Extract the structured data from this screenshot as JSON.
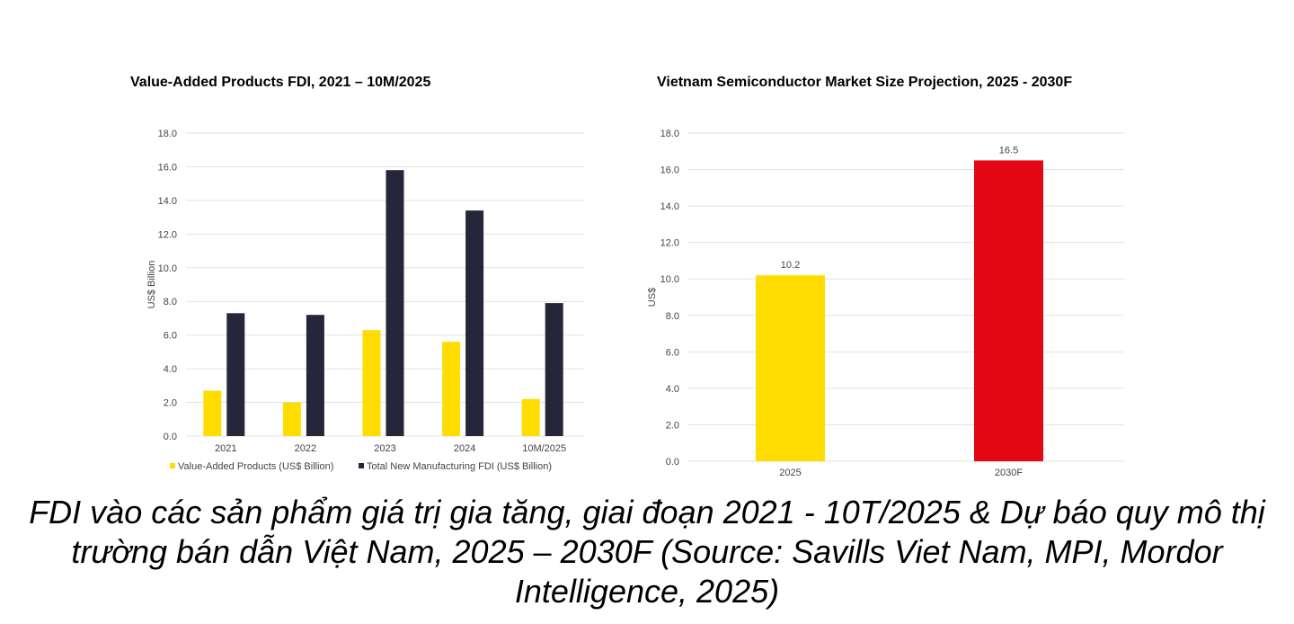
{
  "caption": {
    "line1": "FDI vào các sản phẩm giá trị gia tăng, giai đoạn 2021 - 10T/2025 & Dự báo quy mô thị",
    "line2": "trường bán dẫn Việt Nam, 2025 – 2030F (Source: Savills Viet Nam, MPI, Mordor",
    "line3": "Intelligence, 2025)"
  },
  "chart_data": [
    {
      "type": "bar",
      "title": "Value-Added Products FDI, 2021 – 10M/2025",
      "xlabel": "",
      "ylabel": "US$ Billion",
      "ylim": [
        0,
        18
      ],
      "yticks": [
        "0.0",
        "2.0",
        "4.0",
        "6.0",
        "8.0",
        "10.0",
        "12.0",
        "14.0",
        "16.0",
        "18.0"
      ],
      "grid": true,
      "legend": "bottom",
      "categories": [
        "2021",
        "2022",
        "2023",
        "2024",
        "10M/2025"
      ],
      "series": [
        {
          "name": "Value-Added Products (US$ Billion)",
          "color": "#FFDD00",
          "values": [
            2.7,
            2.0,
            6.3,
            5.6,
            2.2
          ]
        },
        {
          "name": "Total New Manufacturing FDI (US$ Billion)",
          "color": "#25263A",
          "values": [
            7.3,
            7.2,
            15.8,
            13.4,
            7.9
          ]
        }
      ]
    },
    {
      "type": "bar",
      "title": "Vietnam Semiconductor Market Size Projection, 2025 - 2030F",
      "xlabel": "",
      "ylabel": "US$",
      "ylim": [
        0,
        18
      ],
      "yticks": [
        "0.0",
        "2.0",
        "4.0",
        "6.0",
        "8.0",
        "10.0",
        "12.0",
        "14.0",
        "16.0",
        "18.0"
      ],
      "grid": true,
      "categories": [
        "2025",
        "2030F"
      ],
      "values": [
        10.2,
        16.5
      ],
      "data_labels": [
        "10.2",
        "16.5"
      ],
      "colors": [
        "#FFDD00",
        "#E30613"
      ]
    }
  ]
}
